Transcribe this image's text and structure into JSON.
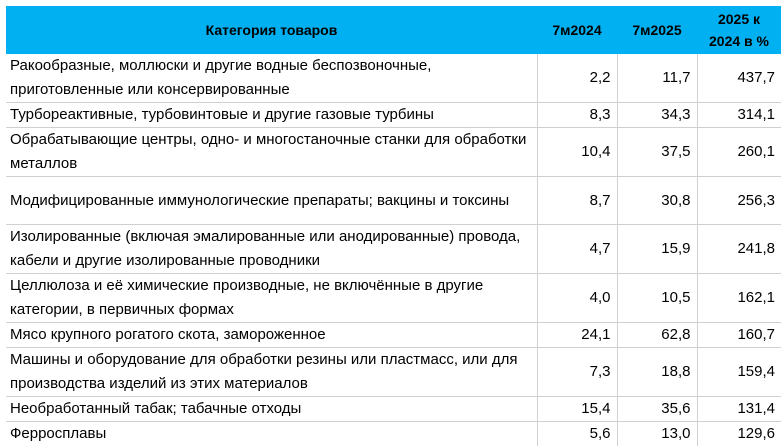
{
  "table": {
    "header": {
      "category": "Категория товаров",
      "col1": "7м2024",
      "col2": "7м2025",
      "col3_line1": "2025 к",
      "col3_line2": "2024 в %"
    },
    "rows": [
      {
        "name": "Ракообразные, моллюски и другие водные беспозвоночные, приготовленные или консервированные",
        "v2024": "2,2",
        "v2025": "11,7",
        "pct": "437,7"
      },
      {
        "name": "Турбореактивные, турбовинтовые и другие газовые турбины",
        "v2024": "8,3",
        "v2025": "34,3",
        "pct": "314,1"
      },
      {
        "name": "Обрабатывающие центры, одно- и многостаночные станки для обработки металлов",
        "v2024": "10,4",
        "v2025": "37,5",
        "pct": "260,1"
      },
      {
        "name": "Модифицированные иммунологические препараты; вакцины и токсины",
        "v2024": "8,7",
        "v2025": "30,8",
        "pct": "256,3"
      },
      {
        "name": "Изолированные (включая эмалированные или анодированные) провода, кабели и другие изолированные проводники",
        "v2024": "4,7",
        "v2025": "15,9",
        "pct": "241,8"
      },
      {
        "name": "Целлюлоза и её химические производные, не включённые в другие категории, в первичных формах",
        "v2024": "4,0",
        "v2025": "10,5",
        "pct": "162,1"
      },
      {
        "name": "Мясо крупного рогатого скота, замороженное",
        "v2024": "24,1",
        "v2025": "62,8",
        "pct": "160,7"
      },
      {
        "name": "Машины и оборудование для обработки резины или пластмасс, или для производства изделий из этих материалов",
        "v2024": "7,3",
        "v2025": "18,8",
        "pct": "159,4"
      },
      {
        "name": "Необработанный табак; табачные отходы",
        "v2024": "15,4",
        "v2025": "35,6",
        "pct": "131,4"
      },
      {
        "name": "Ферросплавы",
        "v2024": "5,6",
        "v2025": "13,0",
        "pct": "129,6"
      }
    ]
  },
  "colors": {
    "header_bg": "#00B0F0",
    "grid": "#d0d0d0"
  }
}
